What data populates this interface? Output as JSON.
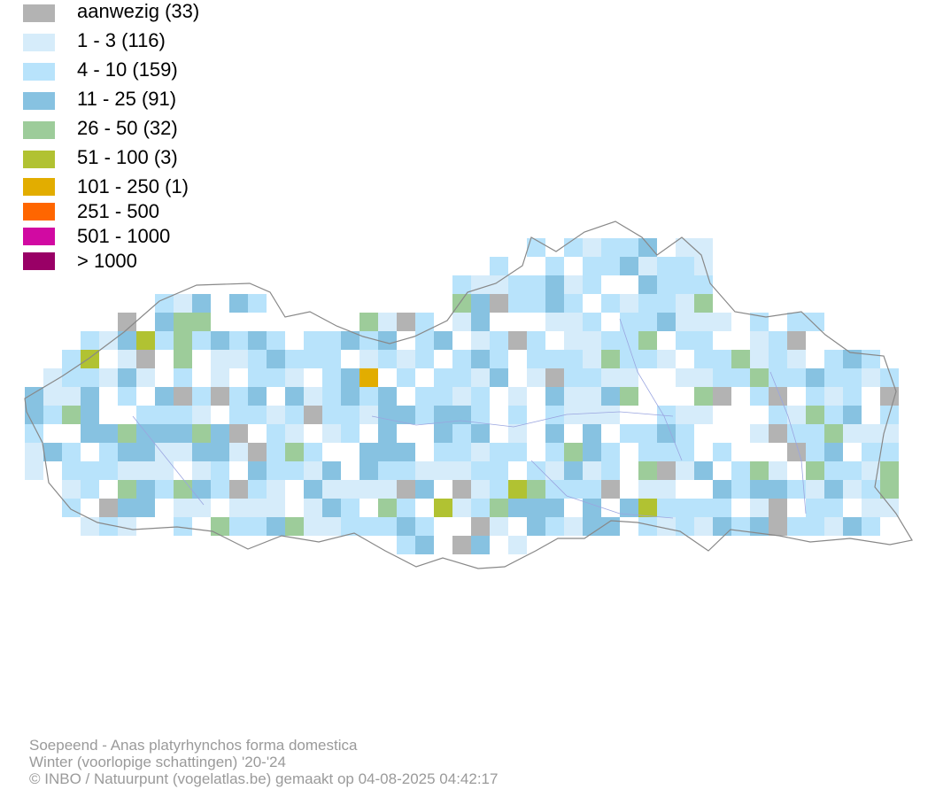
{
  "legend": {
    "items": [
      {
        "label": "aanwezig (33)",
        "color": "#b3b3b3"
      },
      {
        "label": "1 - 3 (116)",
        "color": "#d6ecfa"
      },
      {
        "label": "4 - 10 (159)",
        "color": "#b8e3fb"
      },
      {
        "label": "11 - 25 (91)",
        "color": "#87c2e1"
      },
      {
        "label": "26 - 50 (32)",
        "color": "#9dcc9a"
      },
      {
        "label": "51 - 100 (3)",
        "color": "#b1c232"
      },
      {
        "label": "101 - 250 (1)",
        "color": "#e2ad00"
      },
      {
        "label": "251 - 500",
        "color": "#ff6600"
      },
      {
        "label": "501 - 1000",
        "color": "#d10aa2"
      },
      {
        "label": "> 1000",
        "color": "#990066"
      }
    ]
  },
  "caption": {
    "line1": "Soepeend - Anas platyrhynchos forma domestica",
    "line2": "Winter (voorlopige schattingen) '20-'24",
    "line3": "© INBO / Natuurpunt (vogelatlas.be) gemaakt op 04-08-2025 04:42:17"
  }
}
